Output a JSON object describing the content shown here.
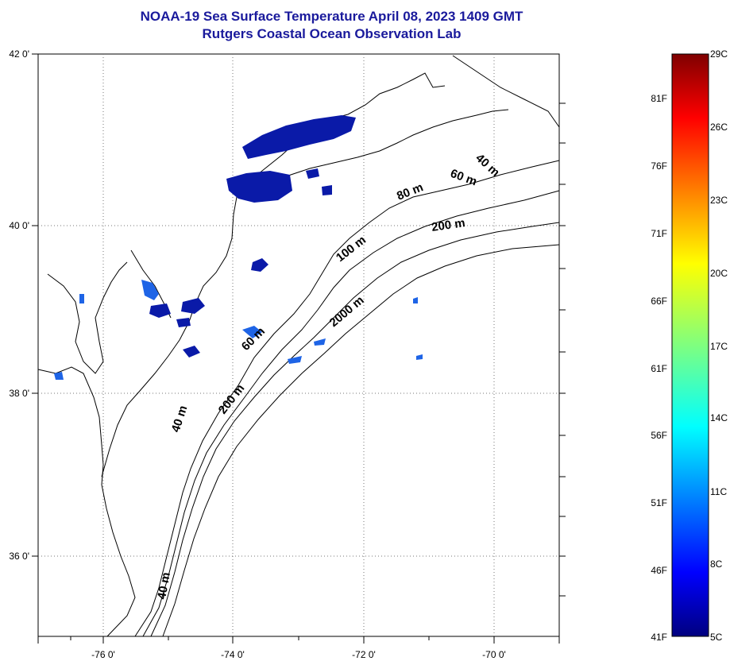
{
  "title": {
    "line1": "NOAA-19 Sea Surface Temperature April 08, 2023 1409 GMT",
    "line2": "Rutgers Coastal Ocean Observation Lab"
  },
  "map": {
    "lat_labels": [
      {
        "lat": 42,
        "label": "42 0'"
      },
      {
        "lat": 40,
        "label": "40 0'"
      },
      {
        "lat": 38,
        "label": "38 0'"
      },
      {
        "lat": 36,
        "label": "36 0'"
      }
    ],
    "lon_labels": [
      {
        "lon": -76,
        "label": "-76 0'"
      },
      {
        "lon": -74,
        "label": "-74 0'"
      },
      {
        "lon": -72,
        "label": "-72 0'"
      },
      {
        "lon": -70,
        "label": "-70 0'"
      }
    ],
    "depth_labels": [
      "40 m",
      "60 m",
      "80 m",
      "200 m",
      "100 m",
      "2000 m",
      "60 m",
      "200 m",
      "40 m",
      "40 m"
    ],
    "lat_range": [
      35,
      42.1
    ],
    "lon_range": [
      -77,
      -69
    ]
  },
  "colorbar": {
    "fahrenheit_labels": [
      "81F",
      "76F",
      "71F",
      "66F",
      "61F",
      "56F",
      "51F",
      "46F",
      "41F"
    ],
    "celsius_labels": [
      "29C",
      "26C",
      "23C",
      "20C",
      "17C",
      "14C",
      "11C",
      "8C",
      "5C"
    ],
    "range_c": [
      5,
      29
    ],
    "colormap": "jet",
    "colors": [
      "#00007f",
      "#0000ff",
      "#007fff",
      "#00ffff",
      "#7fff7f",
      "#ffff00",
      "#ff7f00",
      "#ff0000",
      "#7f0000"
    ]
  },
  "colors": {
    "title": "#1a1a9c",
    "cold_patch": "#0a1aa8",
    "mid_patch": "#1e64e6",
    "coast": "#000000",
    "grid": "#555555"
  }
}
